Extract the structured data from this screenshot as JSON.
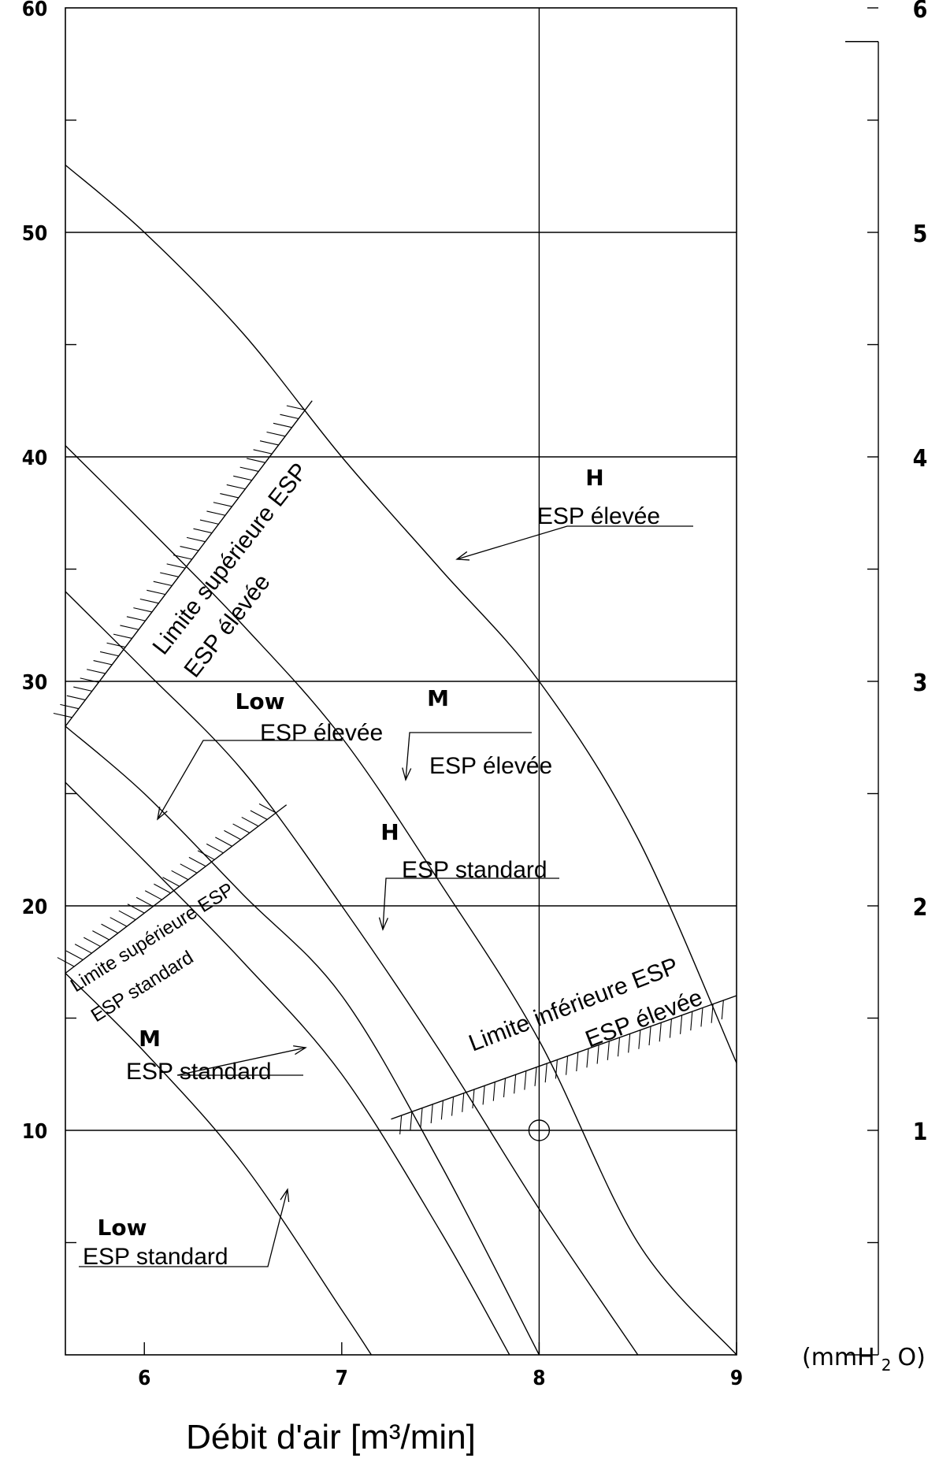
{
  "chart_data": {
    "type": "line",
    "xlabel": "Débit d'air [m³/min]",
    "xlim": [
      5.6,
      9.0
    ],
    "ylim": [
      0,
      60
    ],
    "x_ticks": [
      6,
      7,
      8,
      9
    ],
    "y_ticks_left": [
      10,
      20,
      30,
      40,
      50,
      60
    ],
    "y_ticks_right": [
      1,
      2,
      3,
      4,
      5,
      6
    ],
    "right_axis_unit": {
      "pre": "(mmH",
      "sub": "2",
      "post": "O)"
    },
    "grid": true,
    "series": [
      {
        "name": "H ESP élevée",
        "x": [
          5.6,
          6.0,
          6.5,
          7.0,
          7.5,
          8.0,
          8.5,
          9.0
        ],
        "y": [
          53,
          50,
          45.5,
          40,
          35,
          30,
          23,
          13
        ]
      },
      {
        "name": "M ESP élevée",
        "x": [
          5.6,
          6.0,
          6.5,
          7.0,
          7.5,
          8.0,
          8.5,
          9.0
        ],
        "y": [
          40.5,
          37,
          32.5,
          27.5,
          21,
          14,
          5,
          0
        ]
      },
      {
        "name": "Low ESP élevée",
        "x": [
          5.6,
          6.0,
          6.5,
          7.0,
          7.5,
          8.0,
          8.5
        ],
        "y": [
          34,
          30.5,
          26,
          20,
          13.5,
          6.5,
          0
        ]
      },
      {
        "name": "H ESP standard",
        "x": [
          5.6,
          6.0,
          6.5,
          7.0,
          7.5,
          8.0
        ],
        "y": [
          28,
          25,
          20.5,
          16,
          8.5,
          0
        ]
      },
      {
        "name": "M ESP standard",
        "x": [
          5.6,
          6.0,
          6.5,
          7.0,
          7.5,
          7.85
        ],
        "y": [
          25.5,
          22,
          17.5,
          12.5,
          5.5,
          0
        ]
      },
      {
        "name": "Low ESP standard",
        "x": [
          5.6,
          6.0,
          6.5,
          7.0,
          7.15
        ],
        "y": [
          17,
          13.5,
          8.5,
          2,
          0
        ]
      }
    ],
    "limit_lines": [
      {
        "label": "Limite supérieure ESP ESP élevée",
        "x": [
          5.6,
          6.85
        ],
        "y": [
          28,
          42.5
        ]
      },
      {
        "label": "Limite supérieure ESP ESP standard",
        "x": [
          5.6,
          6.72
        ],
        "y": [
          17,
          24.5
        ]
      },
      {
        "label": "Limite inférieure ESP ESP élevée",
        "x": [
          7.25,
          9.0
        ],
        "y": [
          10.5,
          16
        ]
      }
    ],
    "annotations": [
      {
        "head": "H",
        "text": "ESP élevée"
      },
      {
        "head": "M",
        "text": "ESP élevée"
      },
      {
        "head": "Low",
        "text": "ESP élevée"
      },
      {
        "head": "H",
        "text": "ESP standard"
      },
      {
        "head": "M",
        "text": "ESP standard"
      },
      {
        "head": "Low",
        "text": "ESP standard"
      }
    ],
    "limit_labels": {
      "upper_elevee": [
        "Limite supérieure ESP",
        "ESP élevée"
      ],
      "upper_standard": [
        "Limite supérieure ESP",
        "ESP standard"
      ],
      "lower_elevee": [
        "Limite inférieure ESP",
        "ESP élevée"
      ]
    },
    "marker_point": {
      "x": 8.0,
      "y": 10
    }
  }
}
